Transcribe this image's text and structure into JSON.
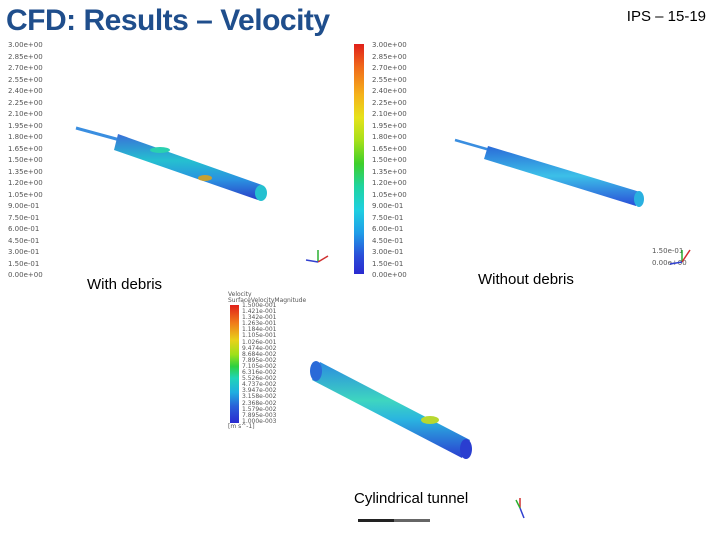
{
  "slide": {
    "title": "CFD: Results – Velocity",
    "id": "IPS – 15-19"
  },
  "left_legend": {
    "values": [
      "3.00e+00",
      "2.85e+00",
      "2.70e+00",
      "2.55e+00",
      "2.40e+00",
      "2.25e+00",
      "2.10e+00",
      "1.95e+00",
      "1.80e+00",
      "1.65e+00",
      "1.50e+00",
      "1.35e+00",
      "1.20e+00",
      "1.05e+00",
      "9.00e-01",
      "7.50e-01",
      "6.00e-01",
      "4.50e-01",
      "3.00e-01",
      "1.50e-01",
      "0.00e+00"
    ]
  },
  "center_legend": {
    "values": [
      "3.00e+00",
      "2.85e+00",
      "2.70e+00",
      "2.55e+00",
      "2.40e+00",
      "2.25e+00",
      "2.10e+00",
      "1.95e+00",
      "1.80e+00",
      "1.65e+00",
      "1.50e+00",
      "1.35e+00",
      "1.20e+00",
      "1.05e+00",
      "9.00e-01",
      "7.50e-01",
      "6.00e-01",
      "4.50e-01",
      "3.00e-01",
      "1.50e-01",
      "0.00e+00"
    ]
  },
  "right_legend": {
    "values": [
      "1.50e-01",
      "0.00e+00"
    ]
  },
  "bottom_legend": {
    "title": "Velocity",
    "subtitle": "SurfaceVelocityMagnitude",
    "values": [
      "1.500e-001",
      "1.421e-001",
      "1.342e-001",
      "1.263e-001",
      "1.184e-001",
      "1.105e-001",
      "1.026e-001",
      "9.474e-002",
      "8.684e-002",
      "7.895e-002",
      "7.105e-002",
      "6.316e-002",
      "5.526e-002",
      "4.737e-002",
      "3.947e-002",
      "3.158e-002",
      "2.368e-002",
      "1.579e-002",
      "7.895e-003",
      "1.000e-003"
    ],
    "unit": "[m s^-1]"
  },
  "captions": {
    "with_debris": "With debris",
    "without_debris": "Without debris",
    "cylindrical_tunnel": "Cylindrical tunnel"
  },
  "colors": {
    "title": "#1f4e8c"
  }
}
